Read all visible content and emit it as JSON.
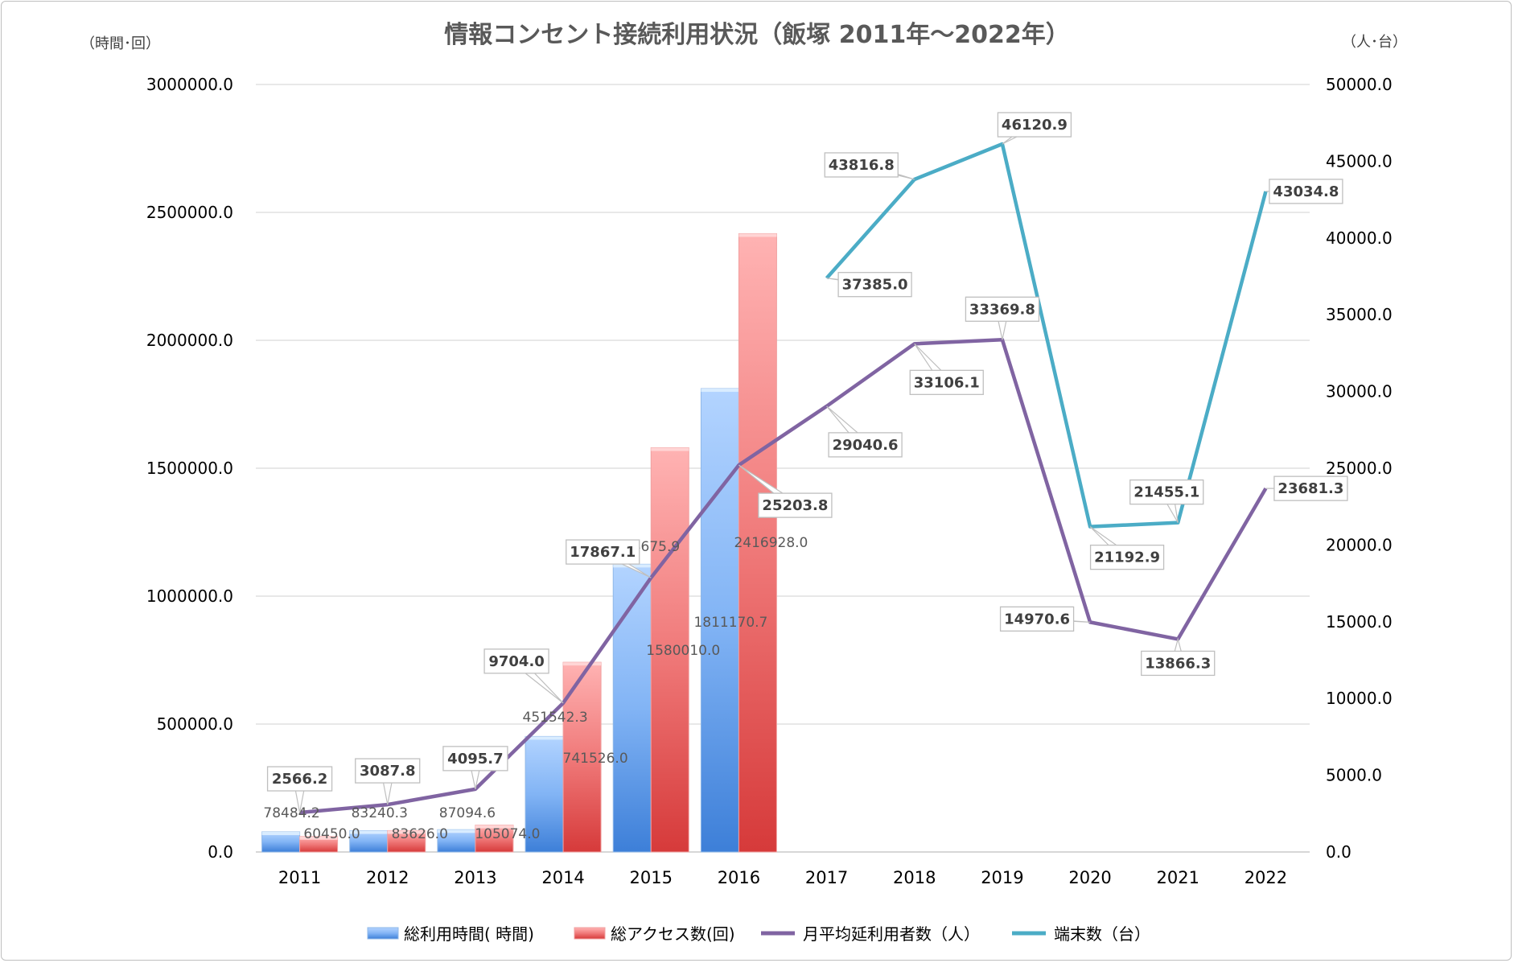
{
  "chart_data": {
    "type": "bar+line",
    "title": "情報コンセント接続利用状況（飯塚 2011年〜2022年）",
    "ylabel_left": "（時間･回）",
    "ylabel_right": "（人･台）",
    "categories": [
      "2011",
      "2012",
      "2013",
      "2014",
      "2015",
      "2016",
      "2017",
      "2018",
      "2019",
      "2020",
      "2021",
      "2022"
    ],
    "ylim_left": [
      0,
      3000000
    ],
    "ylim_right": [
      0,
      50000
    ],
    "yticks_left": [
      "0.0",
      "500000.0",
      "1000000.0",
      "1500000.0",
      "2000000.0",
      "2500000.0",
      "3000000.0"
    ],
    "yticks_right": [
      "0.0",
      "5000.0",
      "10000.0",
      "15000.0",
      "20000.0",
      "25000.0",
      "30000.0",
      "35000.0",
      "40000.0",
      "45000.0",
      "50000.0"
    ],
    "grid": true,
    "legend_position": "bottom",
    "series": [
      {
        "name": "総利用時間( 時間)",
        "type": "bar",
        "axis": "left",
        "color": "#4a8fe0",
        "values": [
          78484.2,
          83240.3,
          87094.6,
          451542.3,
          1124675.9,
          1811170.7,
          null,
          null,
          null,
          null,
          null,
          null
        ],
        "labels": [
          "78484.2",
          "83240.3",
          "87094.6",
          "451542.3",
          "1124675.9",
          "1811170.7"
        ]
      },
      {
        "name": "総アクセス数(回)",
        "type": "bar",
        "axis": "left",
        "color": "#e04848",
        "values": [
          60450.0,
          83626.0,
          105074.0,
          741526.0,
          1580010.0,
          2416928.0,
          null,
          null,
          null,
          null,
          null,
          null
        ],
        "labels": [
          "60450.0",
          "83626.0",
          "105074.0",
          "741526.0",
          "1580010.0",
          "2416928.0"
        ]
      },
      {
        "name": "月平均延利用者数（人）",
        "type": "line",
        "axis": "right",
        "color": "#8064a2",
        "values": [
          2566.2,
          3087.8,
          4095.7,
          9704.0,
          17867.1,
          25203.8,
          29040.6,
          33106.1,
          33369.8,
          14970.6,
          13866.3,
          23681.3
        ],
        "labels": [
          "2566.2",
          "3087.8",
          "4095.7",
          "9704.0",
          "17867.1",
          "25203.8",
          "29040.6",
          "33106.1",
          "33369.8",
          "14970.6",
          "13866.3",
          "23681.3"
        ]
      },
      {
        "name": "端末数（台）",
        "type": "line",
        "axis": "right",
        "color": "#4bacc6",
        "values": [
          null,
          null,
          null,
          null,
          null,
          null,
          37385.0,
          43816.8,
          46120.9,
          21192.9,
          21455.1,
          43034.8
        ],
        "labels": [
          "37385.0",
          "43816.8",
          "46120.9",
          "21192.9",
          "21455.1",
          "43034.8"
        ]
      }
    ]
  }
}
